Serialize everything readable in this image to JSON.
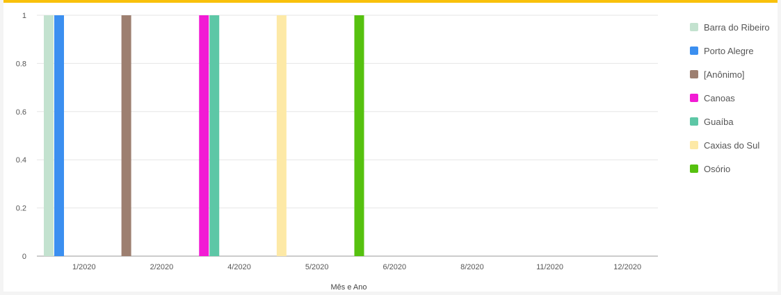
{
  "chart_data": {
    "type": "bar",
    "xlabel": "Mês e Ano",
    "ylabel": "",
    "ylim": [
      0,
      1
    ],
    "yticks": [
      "0",
      "0.2",
      "0.4",
      "0.6",
      "0.8",
      "1"
    ],
    "ytick_values": [
      0,
      0.2,
      0.4,
      0.6,
      0.8,
      1
    ],
    "categories": [
      "1/2020",
      "2/2020",
      "4/2020",
      "5/2020",
      "6/2020",
      "8/2020",
      "11/2020",
      "12/2020"
    ],
    "legend_position": "right",
    "grid": true,
    "series": [
      {
        "name": "Barra do Ribeiro",
        "color": "#c3e2cf",
        "values": [
          1,
          0,
          0,
          0,
          0,
          0,
          0,
          0
        ]
      },
      {
        "name": "Porto Alegre",
        "color": "#3b8ff0",
        "values": [
          1,
          0,
          0,
          0,
          0,
          0,
          0,
          0
        ]
      },
      {
        "name": "[Anônimo]",
        "color": "#9d7f70",
        "values": [
          0,
          1,
          0,
          0,
          0,
          0,
          0,
          0
        ]
      },
      {
        "name": "Canoas",
        "color": "#f21bd4",
        "values": [
          0,
          0,
          1,
          0,
          0,
          0,
          0,
          0
        ]
      },
      {
        "name": "Guaíba",
        "color": "#5dc7a6",
        "values": [
          0,
          0,
          1,
          0,
          0,
          0,
          0,
          0
        ]
      },
      {
        "name": "Caxias do Sul",
        "color": "#fde9a6",
        "values": [
          0,
          0,
          0,
          1,
          0,
          0,
          0,
          0
        ]
      },
      {
        "name": "Osório",
        "color": "#56c10f",
        "values": [
          0,
          0,
          0,
          0,
          1,
          0,
          0,
          0
        ]
      }
    ]
  }
}
